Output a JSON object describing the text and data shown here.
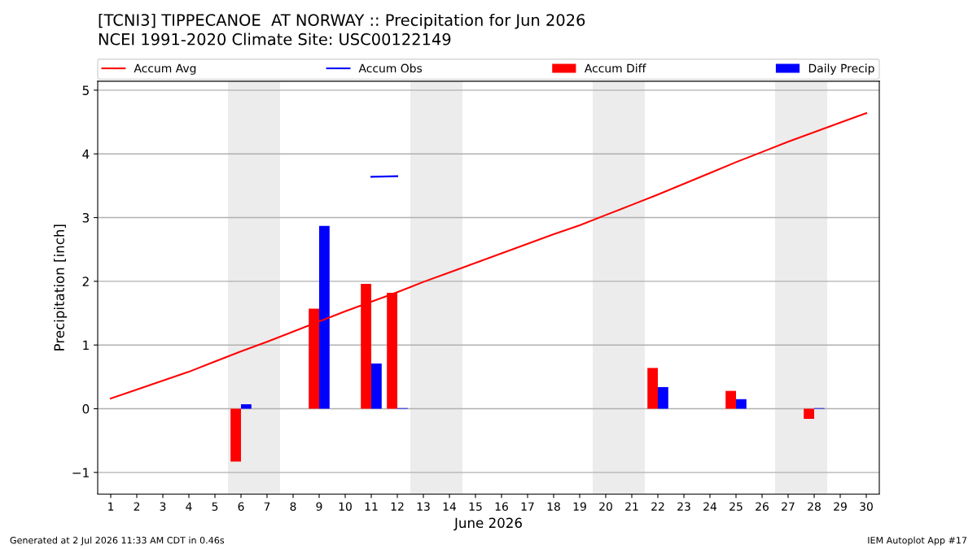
{
  "chart_data": {
    "type": "bar",
    "title": "[TCNI3] TIPPECANOE  AT NORWAY :: Precipitation for Jun 2026",
    "subtitle": "NCEI 1991-2020 Climate Site: USC00122149",
    "xlabel": "June 2026",
    "ylabel": "Precipitation [inch]",
    "x": [
      1,
      2,
      3,
      4,
      5,
      6,
      7,
      8,
      9,
      10,
      11,
      12,
      13,
      14,
      15,
      16,
      17,
      18,
      19,
      20,
      21,
      22,
      23,
      24,
      25,
      26,
      27,
      28,
      29,
      30
    ],
    "series": [
      {
        "name": "Accum Avg",
        "type": "line",
        "color": "#ff0000",
        "values": [
          0.16,
          0.3,
          0.44,
          0.58,
          0.74,
          0.9,
          1.05,
          1.21,
          1.37,
          1.53,
          1.68,
          1.83,
          1.99,
          2.14,
          2.29,
          2.44,
          2.59,
          2.74,
          2.88,
          3.04,
          3.2,
          3.36,
          3.53,
          3.7,
          3.87,
          4.03,
          4.19,
          4.34,
          4.49,
          4.64
        ]
      },
      {
        "name": "Accum Obs",
        "type": "line",
        "color": "#0000ff",
        "values": [
          null,
          null,
          null,
          null,
          null,
          null,
          null,
          null,
          null,
          null,
          3.64,
          3.65,
          null,
          null,
          null,
          null,
          null,
          null,
          null,
          null,
          null,
          null,
          null,
          null,
          null,
          null,
          null,
          null,
          null,
          null
        ]
      },
      {
        "name": "Accum Diff",
        "color": "#ff0000",
        "values": [
          null,
          null,
          null,
          null,
          null,
          -0.83,
          null,
          null,
          1.57,
          null,
          1.96,
          1.82,
          null,
          null,
          null,
          null,
          null,
          null,
          null,
          null,
          null,
          0.64,
          null,
          null,
          0.28,
          null,
          null,
          -0.16,
          null,
          null
        ]
      },
      {
        "name": "Daily Precip",
        "color": "#0000ff",
        "values": [
          null,
          null,
          null,
          null,
          null,
          0.07,
          null,
          null,
          2.87,
          null,
          0.71,
          0.01,
          null,
          null,
          null,
          null,
          null,
          null,
          null,
          null,
          null,
          0.34,
          null,
          null,
          0.15,
          null,
          null,
          0.01,
          null,
          null
        ]
      }
    ],
    "bands": [
      {
        "axis": "x",
        "from": 5.5,
        "to": 7.5,
        "color": "#ececec"
      },
      {
        "axis": "x",
        "from": 12.5,
        "to": 14.5,
        "color": "#ececec"
      },
      {
        "axis": "x",
        "from": 19.5,
        "to": 21.5,
        "color": "#ececec"
      },
      {
        "axis": "x",
        "from": 26.5,
        "to": 28.5,
        "color": "#ececec"
      }
    ],
    "xlim": [
      0.5,
      30.5
    ],
    "xticks": [
      1,
      2,
      3,
      4,
      5,
      6,
      7,
      8,
      9,
      10,
      11,
      12,
      13,
      14,
      15,
      16,
      17,
      18,
      19,
      20,
      21,
      22,
      23,
      24,
      25,
      26,
      27,
      28,
      29,
      30
    ],
    "ylim": [
      -1.34,
      5.14
    ],
    "yticks": [
      {
        "value": -1,
        "label": "−1"
      },
      0,
      1,
      2,
      3,
      4,
      5
    ],
    "grid": "y",
    "legend": "top",
    "annotations": [
      "Generated at 2 Jul 2026 11:33 AM CDT in 0.46s",
      "IEM Autoplot App #17"
    ]
  }
}
